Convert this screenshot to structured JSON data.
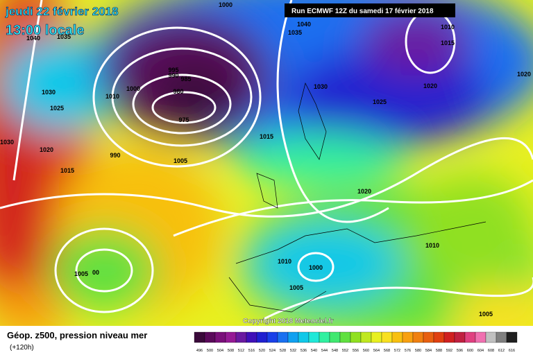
{
  "header": {
    "date": "jeudi 22 février 2018",
    "time": "13:00 locale",
    "run": "Run ECMWF 12Z du samedi 17 février 2018",
    "copyright": "Copyright 2018 Meteociel.fr"
  },
  "legend": {
    "title": "Géop. z500, pression niveau mer",
    "lead": "(+120h)",
    "ticks": [
      496,
      500,
      504,
      508,
      512,
      516,
      520,
      524,
      528,
      532,
      536,
      540,
      544,
      548,
      552,
      556,
      560,
      564,
      568,
      572,
      576,
      580,
      584,
      588,
      592,
      596,
      600,
      604,
      608,
      612,
      616
    ],
    "colors": [
      "#3a0a3a",
      "#5a0a5a",
      "#7a107a",
      "#951a95",
      "#6a1aa0",
      "#4010b8",
      "#2020d0",
      "#1a40e8",
      "#1a70f0",
      "#10a0f0",
      "#10c8e8",
      "#20e8d8",
      "#30f0a0",
      "#40e870",
      "#60e040",
      "#90e020",
      "#c0e820",
      "#e8f020",
      "#f8e020",
      "#f8c010",
      "#f8a010",
      "#f08010",
      "#e86010",
      "#e04010",
      "#d02020",
      "#c02040",
      "#e04080",
      "#f070b0",
      "#c0c0c0",
      "#808080",
      "#202020"
    ]
  },
  "isobars": [
    "1000",
    "1040",
    "1035",
    "1040",
    "1035",
    "1010",
    "1015",
    "995",
    "990",
    "985",
    "1000",
    "980",
    "1010",
    "1030",
    "1025",
    "975",
    "1030",
    "1025",
    "1020",
    "1020",
    "1030",
    "1020",
    "1015",
    "990",
    "1005",
    "1015",
    "1020",
    "1010",
    "1005",
    "00",
    "1010",
    "1000",
    "1005",
    "1005"
  ]
}
